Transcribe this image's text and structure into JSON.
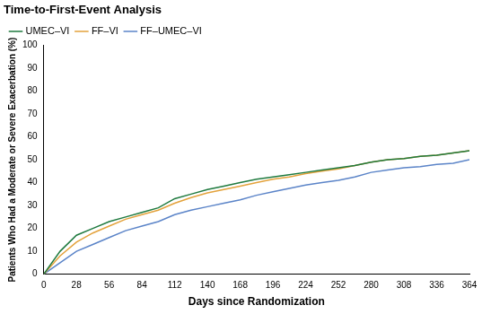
{
  "chart_data": {
    "type": "line",
    "title": "Time-to-First-Event Analysis",
    "x_label": "Days since Randomization",
    "y_label": "Patients Who Had a Moderate or Severe Exacerbation (%)",
    "x": [
      0,
      14,
      28,
      42,
      56,
      70,
      84,
      98,
      112,
      126,
      140,
      154,
      168,
      182,
      196,
      210,
      224,
      238,
      252,
      266,
      280,
      294,
      308,
      322,
      336,
      350,
      364
    ],
    "series": [
      {
        "name": "UMEC–VI",
        "color": "#1f7a3f",
        "values": [
          0,
          10,
          17,
          20,
          23,
          25,
          27,
          29,
          33,
          35,
          37,
          38.5,
          40,
          41.5,
          42.5,
          43.5,
          44.5,
          45.5,
          46.5,
          47.5,
          49,
          50,
          50.5,
          51.5,
          52,
          53,
          54
        ]
      },
      {
        "name": "FF–VI",
        "color": "#e3a23b",
        "values": [
          0,
          8,
          14,
          18,
          21,
          24,
          26,
          28,
          31,
          33.5,
          35.5,
          37,
          38.5,
          40,
          41.5,
          42.5,
          44,
          45,
          46,
          47.5,
          49,
          50,
          50.5,
          51.5,
          52,
          53,
          54
        ]
      },
      {
        "name": "FF–UMEC–VI",
        "color": "#5b84c8",
        "values": [
          0,
          5,
          10,
          13,
          16,
          19,
          21,
          23,
          26,
          28,
          29.5,
          31,
          32.5,
          34.5,
          36,
          37.5,
          39,
          40,
          41,
          42.5,
          44.5,
          45.5,
          46.5,
          47,
          48,
          48.5,
          50
        ]
      }
    ],
    "xlim": [
      0,
      364
    ],
    "xticks": [
      0,
      28,
      56,
      84,
      112,
      140,
      168,
      196,
      224,
      252,
      280,
      308,
      336,
      364
    ],
    "ylim": [
      0,
      100
    ],
    "yticks": [
      0,
      10,
      20,
      30,
      40,
      50,
      60,
      70,
      80,
      90,
      100
    ],
    "grid": false,
    "legend": "upper left"
  }
}
